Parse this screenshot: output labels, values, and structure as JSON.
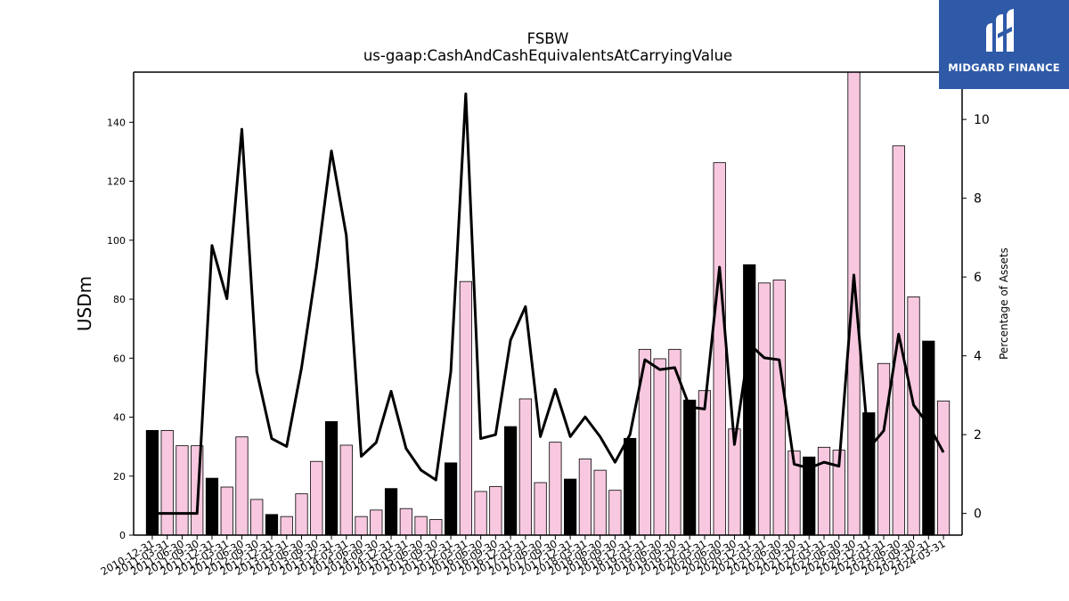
{
  "chart_data": {
    "type": "bar",
    "title": "FSBW",
    "subtitle": "us-gaap:CashAndCashEquivalentsAtCarryingValue",
    "ylabel": "USDm",
    "y2label": "Percentage of Assets",
    "ylim": [
      0,
      157
    ],
    "y2lim": [
      -0.55,
      11.2
    ],
    "yticks": [
      0,
      20,
      40,
      60,
      80,
      100,
      120,
      140
    ],
    "y2ticks": [
      0,
      2,
      4,
      6,
      8,
      10
    ],
    "categories": [
      "2010-12-31",
      "2011-03-31",
      "2011-06-30",
      "2011-09-30",
      "2011-12-31",
      "2012-03-31",
      "2012-06-30",
      "2012-09-30",
      "2012-12-31",
      "2013-03-31",
      "2013-06-30",
      "2013-09-30",
      "2013-12-31",
      "2014-03-31",
      "2014-06-30",
      "2014-09-30",
      "2014-12-31",
      "2015-03-31",
      "2015-06-30",
      "2015-09-30",
      "2015-12-31",
      "2016-03-31",
      "2016-06-30",
      "2016-09-30",
      "2016-12-31",
      "2017-03-31",
      "2017-06-30",
      "2017-09-30",
      "2017-12-31",
      "2018-03-31",
      "2018-06-30",
      "2018-09-30",
      "2018-12-31",
      "2019-03-31",
      "2019-06-30",
      "2019-09-30",
      "2019-12-31",
      "2020-03-31",
      "2020-06-30",
      "2020-09-30",
      "2020-12-31",
      "2021-03-31",
      "2021-06-30",
      "2021-09-30",
      "2021-12-31",
      "2022-03-31",
      "2022-06-30",
      "2022-09-30",
      "2022-12-31",
      "2023-03-31",
      "2023-06-30",
      "2023-09-30",
      "2023-12-31",
      "2024-03-31"
    ],
    "series": [
      {
        "type": "bar",
        "axis": "left",
        "values": [
          35.5,
          35.5,
          30.3,
          30.3,
          19.3,
          16.3,
          33.3,
          12.1,
          7.0,
          6.3,
          14.0,
          25.0,
          38.5,
          30.5,
          6.3,
          8.5,
          15.8,
          9.0,
          6.3,
          5.3,
          24.5,
          86.0,
          14.8,
          16.5,
          36.8,
          46.2,
          17.8,
          31.5,
          19.0,
          25.8,
          22.0,
          15.2,
          32.8,
          63.0,
          59.8,
          63.0,
          45.8,
          49.0,
          126.3,
          36.0,
          91.7,
          85.5,
          86.5,
          28.5,
          26.5,
          29.8,
          28.8,
          158.5,
          41.5,
          58.2,
          132.0,
          80.8,
          65.8,
          45.5
        ],
        "highlight": [
          true,
          false,
          false,
          false,
          true,
          false,
          false,
          false,
          true,
          false,
          false,
          false,
          true,
          false,
          false,
          false,
          true,
          false,
          false,
          false,
          true,
          false,
          false,
          false,
          true,
          false,
          false,
          false,
          true,
          false,
          false,
          false,
          true,
          false,
          false,
          false,
          true,
          false,
          false,
          false,
          true,
          false,
          false,
          false,
          true,
          false,
          false,
          false,
          true,
          false,
          false,
          false,
          true,
          false
        ]
      },
      {
        "type": "line",
        "axis": "right",
        "values": [
          0.0,
          0.0,
          0.0,
          0.0,
          6.8,
          5.45,
          9.75,
          3.6,
          1.9,
          1.7,
          3.7,
          6.25,
          9.2,
          7.05,
          1.45,
          1.8,
          3.1,
          1.65,
          1.1,
          0.85,
          3.6,
          10.65,
          1.9,
          2.0,
          4.4,
          5.25,
          1.95,
          3.15,
          1.95,
          2.45,
          1.95,
          1.3,
          2.0,
          3.9,
          3.65,
          3.7,
          2.7,
          2.65,
          6.25,
          1.75,
          4.3,
          3.95,
          3.9,
          1.25,
          1.15,
          1.3,
          1.2,
          6.05,
          1.65,
          2.1,
          4.55,
          2.75,
          2.25,
          1.55
        ]
      }
    ],
    "colors": {
      "bar_regular": "#f8c8e0",
      "bar_highlight": "#000000",
      "bar_edge": "#000000",
      "line": "#000000"
    },
    "grid": false
  },
  "logo": {
    "name": "MIDGARD FINANCE",
    "background": "#2f5aa8"
  }
}
